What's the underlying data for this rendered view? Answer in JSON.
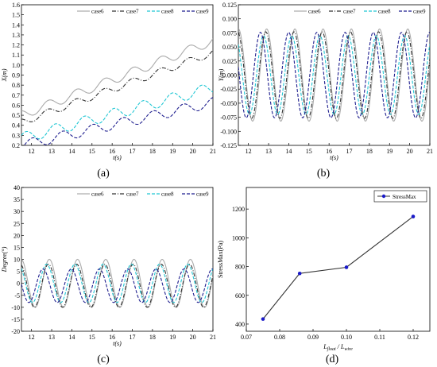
{
  "chart_data": [
    {
      "type": "line",
      "panel_label": "(a)",
      "xlabel": "t(s)",
      "ylabel": "X(m)",
      "xlim": [
        11.5,
        21
      ],
      "ylim": [
        0.2,
        1.6
      ],
      "xticks": [
        "12",
        "13",
        "14",
        "15",
        "16",
        "17",
        "18",
        "19",
        "20",
        "21"
      ],
      "yticks": [
        "0.2",
        "0.3",
        "0.4",
        "0.5",
        "0.6",
        "0.7",
        "0.8",
        "0.9",
        "1.0",
        "1.1",
        "1.2",
        "1.3",
        "1.4",
        "1.5",
        "1.6"
      ],
      "legend_position": "top-right",
      "series": [
        {
          "name": "case6",
          "color": "#aaaaaa",
          "style": "solid",
          "base0": 0.5,
          "slope": 0.078,
          "amp": 0.045,
          "period": 1.4,
          "phase": 0.5
        },
        {
          "name": "case7",
          "color": "#333333",
          "style": "dashdot",
          "base0": 0.43,
          "slope": 0.073,
          "amp": 0.035,
          "period": 1.4,
          "phase": 0.7
        },
        {
          "name": "case8",
          "color": "#22c7d4",
          "style": "dashed",
          "base0": 0.27,
          "slope": 0.053,
          "amp": 0.055,
          "period": 1.45,
          "phase": 1.0
        },
        {
          "name": "case9",
          "color": "#1f1f8f",
          "style": "dashed",
          "base0": 0.2,
          "slope": 0.045,
          "amp": 0.05,
          "period": 1.5,
          "phase": 1.4
        }
      ]
    },
    {
      "type": "line",
      "panel_label": "(b)",
      "xlabel": "t(s)",
      "ylabel": "Y(m)",
      "xlim": [
        11.5,
        21
      ],
      "ylim": [
        -0.125,
        0.125
      ],
      "xticks": [
        "12",
        "13",
        "14",
        "15",
        "16",
        "17",
        "18",
        "19",
        "20",
        "21"
      ],
      "yticks": [
        "-0.125",
        "-0.100",
        "-0.075",
        "-0.050",
        "-0.025",
        "0.000",
        "0.025",
        "0.050",
        "0.075",
        "0.100",
        "0.125"
      ],
      "legend_position": "top-right",
      "series": [
        {
          "name": "case6",
          "color": "#aaaaaa",
          "style": "solid",
          "base0": 0,
          "slope": 0,
          "amp": 0.082,
          "period": 1.4,
          "phase": 0.2
        },
        {
          "name": "case7",
          "color": "#333333",
          "style": "dashdot",
          "base0": 0,
          "slope": 0,
          "amp": 0.077,
          "period": 1.4,
          "phase": 0.4
        },
        {
          "name": "case8",
          "color": "#22c7d4",
          "style": "dashed",
          "base0": 0,
          "slope": 0,
          "amp": 0.07,
          "period": 1.4,
          "phase": 0.9
        },
        {
          "name": "case9",
          "color": "#1f1f8f",
          "style": "dashed",
          "base0": 0,
          "slope": 0,
          "amp": 0.076,
          "period": 1.4,
          "phase": 1.6
        }
      ]
    },
    {
      "type": "line",
      "panel_label": "(c)",
      "xlabel": "t(s)",
      "ylabel": "Degree(°)",
      "xlim": [
        11.5,
        21
      ],
      "ylim": [
        -20,
        40
      ],
      "xticks": [
        "12",
        "13",
        "14",
        "15",
        "16",
        "17",
        "18",
        "19",
        "20",
        "21"
      ],
      "yticks": [
        "-20",
        "-15",
        "-10",
        "-5",
        "0",
        "5",
        "10",
        "15",
        "20",
        "25",
        "30",
        "35",
        "40"
      ],
      "legend_position": "top-right",
      "series": [
        {
          "name": "case6",
          "color": "#aaaaaa",
          "style": "solid",
          "base0": 0,
          "slope": 0,
          "amp": 10,
          "period": 1.4,
          "phase": 0.3
        },
        {
          "name": "case7",
          "color": "#333333",
          "style": "dashdot",
          "base0": -1,
          "slope": 0,
          "amp": 9,
          "period": 1.4,
          "phase": 0.5
        },
        {
          "name": "case8",
          "color": "#22c7d4",
          "style": "dashed",
          "base0": 0,
          "slope": 0,
          "amp": 8,
          "period": 1.4,
          "phase": 0.9
        },
        {
          "name": "case9",
          "color": "#1f1f8f",
          "style": "dashed",
          "base0": -1,
          "slope": 0,
          "amp": 7,
          "period": 1.4,
          "phase": 1.7
        }
      ]
    },
    {
      "type": "line",
      "panel_label": "(d)",
      "xlabel": "L_float / L_wire",
      "ylabel": "StressMax(Pa)",
      "xlim": [
        0.07,
        0.125
      ],
      "ylim": [
        350,
        1350
      ],
      "xticks": [
        "0.07",
        "0.08",
        "0.09",
        "0.10",
        "0.11",
        "0.12"
      ],
      "yticks": [
        "400",
        "600",
        "800",
        "1000",
        "1200"
      ],
      "legend_position": "top-right",
      "series": [
        {
          "name": "StressMax",
          "color": "#1a1ac8",
          "x": [
            0.075,
            0.086,
            0.1,
            0.12
          ],
          "y": [
            435,
            752,
            795,
            1148
          ]
        }
      ]
    }
  ]
}
